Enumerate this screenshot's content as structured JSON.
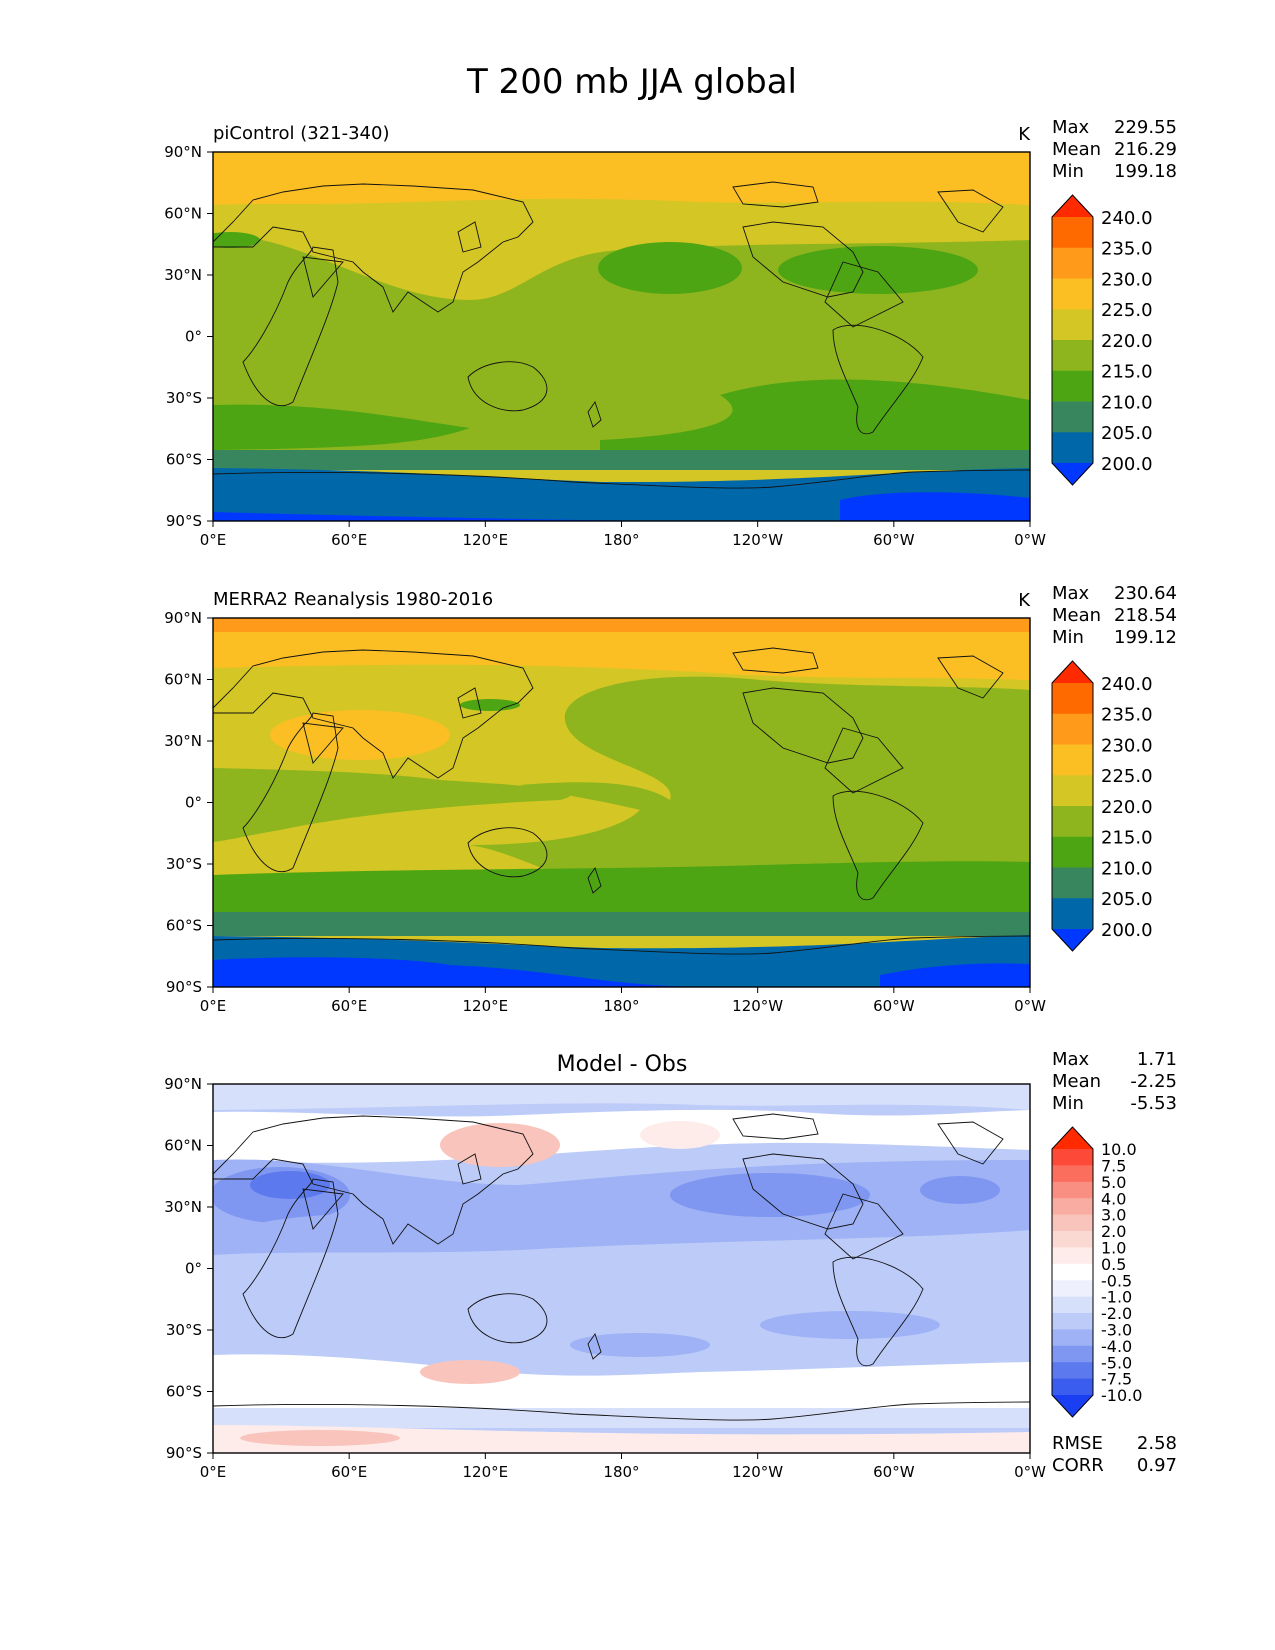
{
  "figure_title": "T 200 mb JJA global",
  "stat_labels": {
    "max": "Max",
    "mean": "Mean",
    "min": "Min"
  },
  "panels": [
    {
      "id": "model",
      "left_title": "piControl (321-340)",
      "center_title": "",
      "units": "K",
      "stats": {
        "max": "229.55",
        "mean": "216.29",
        "min": "199.18"
      },
      "colorbar": {
        "labels": [
          "240.0",
          "235.0",
          "230.0",
          "225.0",
          "220.0",
          "215.0",
          "210.0",
          "205.0",
          "200.0"
        ],
        "colors": [
          "#ff2a00",
          "#ff6a00",
          "#ff9a1a",
          "#fbbf24",
          "#d4c624",
          "#8fb51e",
          "#4ea514",
          "#38865e",
          "#0068a8",
          "#0038ff"
        ]
      }
    },
    {
      "id": "obs",
      "left_title": "MERRA2 Reanalysis 1980-2016",
      "center_title": "",
      "units": "K",
      "stats": {
        "max": "230.64",
        "mean": "218.54",
        "min": "199.12"
      },
      "colorbar": {
        "labels": [
          "240.0",
          "235.0",
          "230.0",
          "225.0",
          "220.0",
          "215.0",
          "210.0",
          "205.0",
          "200.0"
        ],
        "colors": [
          "#ff2a00",
          "#ff6a00",
          "#ff9a1a",
          "#fbbf24",
          "#d4c624",
          "#8fb51e",
          "#4ea514",
          "#38865e",
          "#0068a8",
          "#0038ff"
        ]
      }
    },
    {
      "id": "diff",
      "left_title": "",
      "center_title": "Model - Obs",
      "units": "",
      "stats": {
        "max": "1.71",
        "mean": "-2.25",
        "min": "-5.53"
      },
      "colorbar": {
        "labels": [
          "10.0",
          "7.5",
          "5.0",
          "4.0",
          "3.0",
          "2.0",
          "1.0",
          "0.5",
          "-0.5",
          "-1.0",
          "-2.0",
          "-3.0",
          "-4.0",
          "-5.0",
          "-7.5",
          "-10.0"
        ],
        "colors": [
          "#ff2a00",
          "#fd4a38",
          "#fb6e5e",
          "#f98f82",
          "#f8aca2",
          "#f9c4bc",
          "#fbd9d3",
          "#fdecea",
          "#ffffff",
          "#eef1fd",
          "#d7e0fb",
          "#bccbf8",
          "#9eb2f5",
          "#7f97f1",
          "#5c7aee",
          "#3a5df0",
          "#1a3ef2"
        ]
      },
      "footer_stats": {
        "rmse_label": "RMSE",
        "rmse": "2.58",
        "corr_label": "CORR",
        "corr": "0.97"
      }
    }
  ],
  "x_ticks": [
    "0°E",
    "60°E",
    "120°E",
    "180°",
    "120°W",
    "60°W",
    "0°W"
  ],
  "y_ticks": [
    "90°N",
    "60°N",
    "30°N",
    "0°",
    "30°S",
    "60°S",
    "90°S"
  ]
}
